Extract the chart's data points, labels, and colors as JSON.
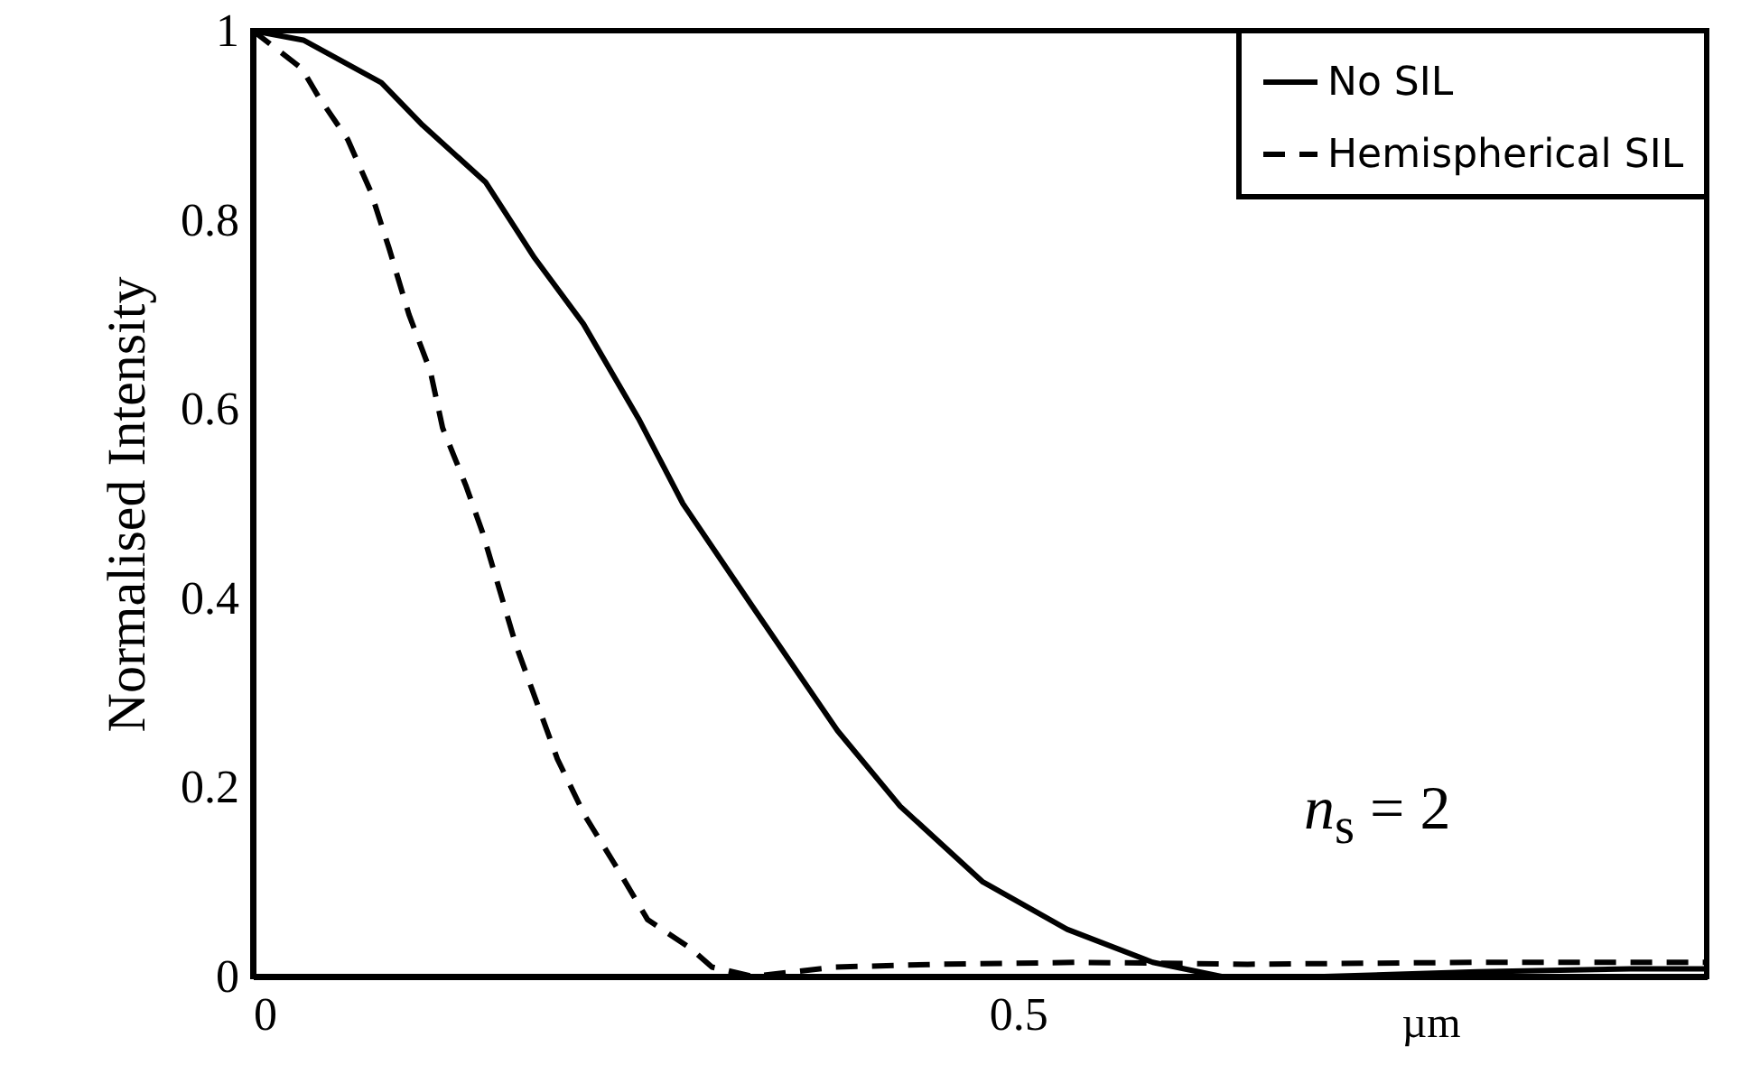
{
  "chart_data": {
    "type": "line",
    "xlabel": "µm",
    "ylabel": "Normalised Intensity",
    "xlim": [
      0,
      0.95
    ],
    "ylim": [
      0,
      1
    ],
    "xticks": [
      0,
      0.5
    ],
    "yticks": [
      0,
      0.2,
      0.4,
      0.6,
      0.8,
      1
    ],
    "grid": false,
    "legend": "top right",
    "marker": "none",
    "annotations": [
      "n$_{s}$ = 2"
    ],
    "series": [
      {
        "name": "No SIL",
        "color": "#000000",
        "line_style": "solid",
        "x": [
          0,
          0.033,
          0.084,
          0.111,
          0.152,
          0.184,
          0.216,
          0.252,
          0.281,
          0.327,
          0.382,
          0.423,
          0.477,
          0.532,
          0.588,
          0.633,
          0.7,
          0.8,
          0.9,
          0.95
        ],
        "values": [
          1,
          0.99,
          0.945,
          0.9,
          0.84,
          0.76,
          0.69,
          0.59,
          0.5,
          0.39,
          0.26,
          0.18,
          0.1,
          0.05,
          0.015,
          0,
          0,
          0.005,
          0.008,
          0.008
        ]
      },
      {
        "name": "Hemispherical SIL",
        "color": "#000000",
        "line_style": "dashed",
        "x": [
          0,
          0.032,
          0.043,
          0.062,
          0.077,
          0.089,
          0.102,
          0.116,
          0.124,
          0.139,
          0.15,
          0.172,
          0.199,
          0.217,
          0.236,
          0.258,
          0.286,
          0.3,
          0.327,
          0.38,
          0.45,
          0.54,
          0.65,
          0.8,
          0.95
        ],
        "values": [
          1,
          0.96,
          0.93,
          0.885,
          0.83,
          0.77,
          0.7,
          0.64,
          0.58,
          0.52,
          0.47,
          0.35,
          0.23,
          0.17,
          0.12,
          0.06,
          0.03,
          0.01,
          0,
          0.01,
          0.013,
          0.015,
          0.013,
          0.015,
          0.015
        ]
      }
    ]
  }
}
